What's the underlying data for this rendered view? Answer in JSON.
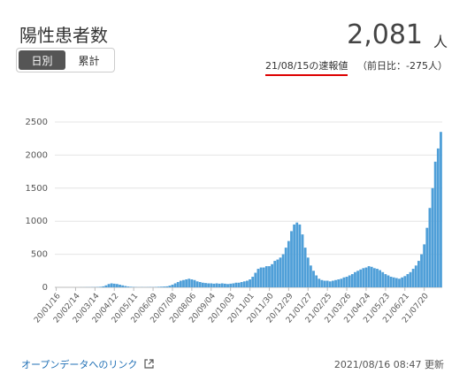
{
  "header": {
    "title": "陽性患者数",
    "tabs": [
      "日別",
      "累計"
    ],
    "value": "2,081",
    "unit": "人",
    "date_note": "21/08/15の速報値",
    "diff_note": "（前日比：-275人）"
  },
  "chart_data": {
    "type": "bar",
    "color": "#4f9fd8",
    "grid": true,
    "ylim": [
      0,
      2500
    ],
    "yticks": [
      0,
      500,
      1000,
      1500,
      2000,
      2500
    ],
    "categories": [
      "20/01/16",
      null,
      null,
      null,
      null,
      null,
      null,
      "20/02/14",
      null,
      null,
      null,
      null,
      null,
      null,
      "20/03/14",
      null,
      null,
      null,
      null,
      null,
      null,
      "20/04/12",
      null,
      null,
      null,
      null,
      null,
      null,
      "20/05/11",
      null,
      null,
      null,
      null,
      null,
      null,
      "20/06/09",
      null,
      null,
      null,
      null,
      null,
      null,
      "20/07/08",
      null,
      null,
      null,
      null,
      null,
      null,
      "20/08/06",
      null,
      null,
      null,
      null,
      null,
      null,
      "20/09/04",
      null,
      null,
      null,
      null,
      null,
      null,
      "20/10/03",
      null,
      null,
      null,
      null,
      null,
      null,
      "20/11/01",
      null,
      null,
      null,
      null,
      null,
      null,
      "20/11/30",
      null,
      null,
      null,
      null,
      null,
      null,
      "20/12/29",
      null,
      null,
      null,
      null,
      null,
      null,
      "21/01/27",
      null,
      null,
      null,
      null,
      null,
      null,
      "21/02/25",
      null,
      null,
      null,
      null,
      null,
      null,
      "21/03/26",
      null,
      null,
      null,
      null,
      null,
      null,
      "21/04/24",
      null,
      null,
      null,
      null,
      null,
      null,
      "21/05/23",
      null,
      null,
      null,
      null,
      null,
      null,
      "21/06/21",
      null,
      null,
      null,
      null,
      null,
      null,
      "21/07/20",
      null,
      null,
      null,
      null,
      null,
      null
    ],
    "values": [
      0,
      0,
      0,
      0,
      0,
      0,
      0,
      0,
      0,
      1,
      1,
      2,
      2,
      3,
      3,
      5,
      8,
      15,
      30,
      50,
      60,
      55,
      50,
      40,
      30,
      20,
      12,
      8,
      5,
      3,
      2,
      3,
      2,
      3,
      4,
      3,
      5,
      8,
      10,
      12,
      15,
      25,
      40,
      60,
      80,
      100,
      110,
      120,
      130,
      120,
      110,
      90,
      80,
      70,
      65,
      60,
      60,
      55,
      60,
      55,
      60,
      55,
      50,
      55,
      60,
      70,
      70,
      80,
      90,
      100,
      120,
      160,
      220,
      280,
      300,
      300,
      320,
      320,
      350,
      400,
      420,
      450,
      500,
      600,
      700,
      850,
      950,
      980,
      950,
      800,
      600,
      450,
      330,
      250,
      180,
      130,
      110,
      100,
      100,
      90,
      100,
      110,
      120,
      130,
      150,
      160,
      180,
      200,
      230,
      250,
      270,
      290,
      300,
      320,
      310,
      290,
      280,
      260,
      230,
      200,
      180,
      160,
      150,
      140,
      130,
      150,
      170,
      200,
      230,
      280,
      330,
      400,
      500,
      650,
      900,
      1200,
      1500,
      1900,
      2100,
      2350
    ]
  },
  "footer": {
    "link": "オープンデータへのリンク",
    "updated": "2021/08/16 08:47 更新"
  }
}
